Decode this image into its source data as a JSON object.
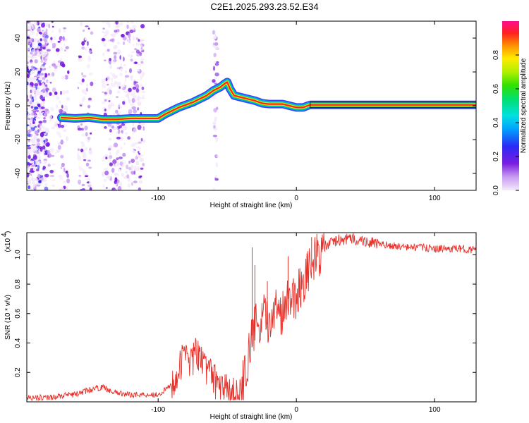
{
  "title": "C2E1.2025.293.23.52.E34",
  "chart_data": [
    {
      "type": "heatmap",
      "name": "spectrogram",
      "xlabel": "Height of straight line (km)",
      "ylabel": "Frequency (Hz)",
      "xlim": [
        -195,
        130
      ],
      "ylim": [
        -50,
        50
      ],
      "xticks": [
        -100,
        0,
        100
      ],
      "xtick_labels": [
        "-100",
        "0",
        "100"
      ],
      "yticks": [
        -40,
        -20,
        0,
        20,
        40
      ],
      "ytick_labels": [
        "-40",
        "-20",
        "0",
        "20",
        "40"
      ],
      "ridge": {
        "x": [
          -170,
          -160,
          -150,
          -140,
          -130,
          -120,
          -110,
          -100,
          -95,
          -90,
          -85,
          -80,
          -75,
          -70,
          -65,
          -60,
          -55,
          -52,
          -50,
          -48,
          -45,
          -40,
          -35,
          -30,
          -25,
          -20,
          -15,
          -10,
          -5,
          0,
          5,
          8,
          10,
          130
        ],
        "y": [
          -7,
          -7.5,
          -7,
          -8,
          -8,
          -7.5,
          -7.5,
          -7.5,
          -5,
          -3,
          -1,
          0.5,
          2,
          4,
          6,
          9,
          11,
          13,
          14,
          10,
          6,
          5,
          4,
          3,
          1.5,
          1,
          1,
          1,
          0,
          -1,
          -1,
          0,
          0.5,
          0.5
        ]
      },
      "colorbar": {
        "label": "Normalized spectral amplitude",
        "ticks": [
          0.0,
          0.2,
          0.4,
          0.6,
          0.8
        ],
        "tick_labels": [
          "0.0",
          "0.2",
          "0.4",
          "0.6",
          "0.8"
        ],
        "range": [
          0,
          1
        ]
      }
    },
    {
      "type": "line",
      "name": "snr",
      "xlabel": "Height of straight line (km)",
      "ylabel": "SNR (10 * v/v)",
      "yscale_label": "(x10",
      "yscale_exponent": "4",
      "xlim": [
        -195,
        130
      ],
      "ylim": [
        0,
        1.15
      ],
      "xticks": [
        -100,
        0,
        100
      ],
      "xtick_labels": [
        "-100",
        "0",
        "100"
      ],
      "yticks": [
        0.2,
        0.4,
        0.6,
        0.8,
        1.0
      ],
      "ytick_labels": [
        "0.2",
        "0.4",
        "0.6",
        "0.8",
        "1.0"
      ],
      "color": "#e8312a",
      "series": [
        {
          "name": "SNR",
          "x": [
            -195,
            -180,
            -160,
            -150,
            -145,
            -140,
            -135,
            -130,
            -120,
            -110,
            -100,
            -95,
            -90,
            -85,
            -82,
            -80,
            -78,
            -75,
            -72,
            -70,
            -68,
            -65,
            -62,
            -60,
            -55,
            -50,
            -45,
            -42,
            -40,
            -36,
            -34,
            -32,
            -30,
            -28,
            -26,
            -24,
            -22,
            -20,
            -18,
            -16,
            -14,
            -12,
            -10,
            -8,
            -6,
            -4,
            -2,
            0,
            2,
            4,
            6,
            8,
            10,
            12,
            14,
            16,
            18,
            20,
            25,
            30,
            35,
            40,
            45,
            50,
            55,
            60,
            70,
            80,
            90,
            100,
            110,
            120,
            130
          ],
          "y": [
            0.03,
            0.03,
            0.05,
            0.08,
            0.09,
            0.1,
            0.08,
            0.06,
            0.05,
            0.05,
            0.05,
            0.08,
            0.12,
            0.2,
            0.3,
            0.38,
            0.3,
            0.28,
            0.35,
            0.25,
            0.3,
            0.2,
            0.28,
            0.15,
            0.1,
            0.07,
            0.05,
            0.03,
            0.08,
            0.22,
            0.35,
            0.45,
            0.5,
            0.55,
            0.45,
            0.6,
            0.55,
            0.5,
            0.65,
            0.55,
            0.7,
            0.62,
            0.6,
            0.72,
            0.7,
            0.75,
            0.72,
            0.7,
            0.78,
            0.8,
            0.85,
            0.88,
            0.9,
            0.95,
            0.98,
            1.0,
            1.02,
            1.05,
            1.08,
            1.1,
            1.1,
            1.11,
            1.1,
            1.09,
            1.08,
            1.07,
            1.06,
            1.05,
            1.05,
            1.04,
            1.04,
            1.04,
            1.03
          ],
          "spikes": [
            {
              "x": -32,
              "y": 1.05
            },
            {
              "x": -30,
              "y": 0.93
            },
            {
              "x": -21,
              "y": 0.82
            },
            {
              "x": -6,
              "y": 0.99
            },
            {
              "x": 11,
              "y": 1.12
            }
          ]
        }
      ]
    }
  ]
}
